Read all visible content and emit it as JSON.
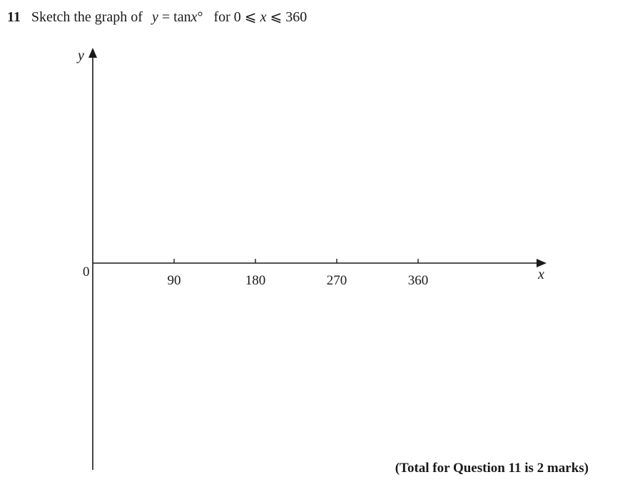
{
  "question": {
    "number": "11",
    "instruction": "Sketch the graph of",
    "function_y": "y",
    "function_eq": " = tan",
    "function_x": "x",
    "function_deg": "°",
    "range_prefix": "for 0 ⩽ ",
    "range_var": "x",
    "range_suffix": " ⩽ 360"
  },
  "axes": {
    "y_label": "y",
    "x_label": "x",
    "origin_label": "0",
    "x_ticks": [
      "90",
      "180",
      "270",
      "360"
    ]
  },
  "chart_data": {
    "type": "line",
    "xlabel": "x",
    "ylabel": "y",
    "xticks": [
      90,
      180,
      270,
      360
    ],
    "series": []
  },
  "footer": {
    "total_marks": "(Total for Question 11 is 2 marks)"
  }
}
